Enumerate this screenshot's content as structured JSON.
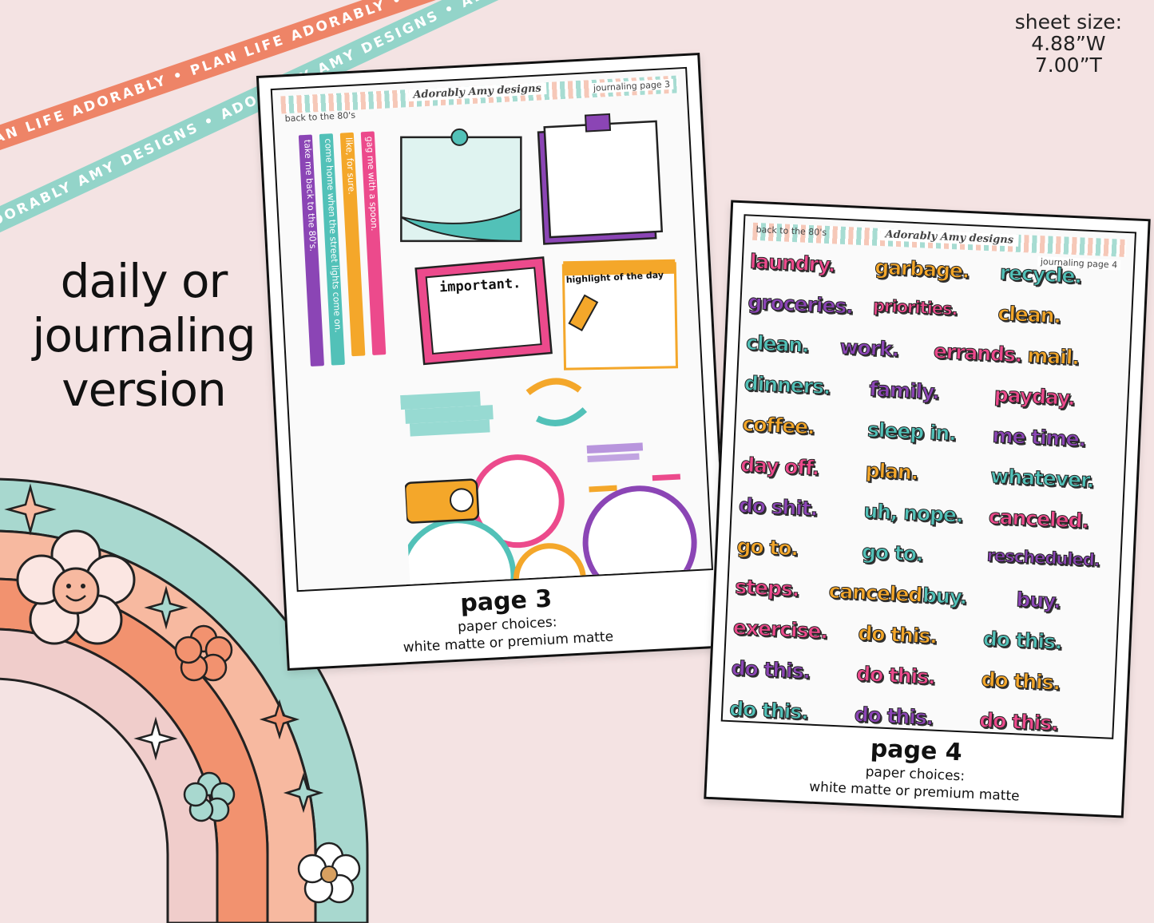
{
  "ribbons": {
    "orange_text": "PLAN LIFE ADORABLY • PLAN LIFE ADORABLY • PLAN LIFE ADORABLY • PLAN LIFE ADORABLY •",
    "teal_text": "ADORABLY AMY DESIGNS • ADORABLY AMY DESIGNS • ADORABLY AMY DESIGNS • ADORABLY AMY DESIGNS •"
  },
  "sheet_size": {
    "label": "sheet size:",
    "width": "4.88”W",
    "height": "7.00”T"
  },
  "headline": {
    "line1": "daily or",
    "line2": "journaling",
    "line3": "version"
  },
  "sheet1": {
    "header_left": "back to the 80's",
    "brand": "Adorably Amy designs",
    "header_right": "journaling page 3",
    "strips": [
      {
        "text": "take me back to the 80's.",
        "color": "#8b45b5"
      },
      {
        "text": "come home when the street lights come on.",
        "color": "#52c1b8"
      },
      {
        "text": "like, for sure.",
        "color": "#f4a72a"
      },
      {
        "text": "gag me with a spoon.",
        "color": "#ec4a8c"
      }
    ],
    "important_label": "important.",
    "highlight_label": "highlight of the day",
    "page_label": "page 3",
    "paper_label": "paper choices:",
    "paper_value": "white matte or premium matte"
  },
  "sheet2": {
    "header_left": "back to the 80's",
    "brand": "Adorably Amy designs",
    "header_right": "journaling page 4",
    "rows": [
      [
        {
          "w": "laundry.",
          "c": "pink"
        },
        {
          "w": "garbage.",
          "c": "orange"
        },
        {
          "w": "recycle.",
          "c": "teal"
        }
      ],
      [
        {
          "w": "groceries.",
          "c": "purple"
        },
        {
          "w": "priorities.",
          "c": "pink"
        },
        {
          "w": "clean.",
          "c": "orange"
        }
      ],
      [
        {
          "w": "clean.",
          "c": "teal"
        },
        {
          "w": "work.",
          "c": "purple"
        },
        {
          "w": "errands.",
          "c": "pink"
        },
        {
          "w": "mail.",
          "c": "orange"
        }
      ],
      [
        {
          "w": "dinners.",
          "c": "teal"
        },
        {
          "w": "family.",
          "c": "purple"
        },
        {
          "w": "payday.",
          "c": "pink"
        }
      ],
      [
        {
          "w": "coffee.",
          "c": "orange"
        },
        {
          "w": "sleep in.",
          "c": "teal"
        },
        {
          "w": "me time.",
          "c": "purple"
        }
      ],
      [
        {
          "w": "day off.",
          "c": "pink"
        },
        {
          "w": "plan.",
          "c": "orange"
        },
        {
          "w": "whatever.",
          "c": "teal"
        }
      ],
      [
        {
          "w": "do shit.",
          "c": "purple"
        },
        {
          "w": "uh, nope.",
          "c": "teal"
        },
        {
          "w": "canceled.",
          "c": "pink"
        }
      ],
      [
        {
          "w": "go to.",
          "c": "orange"
        },
        {
          "w": "go to.",
          "c": "teal"
        },
        {
          "w": "rescheduled.",
          "c": "purple"
        }
      ],
      [
        {
          "w": "steps.",
          "c": "pink"
        },
        {
          "w": "canceled.",
          "c": "orange"
        },
        {
          "w": "buy.",
          "c": "teal"
        },
        {
          "w": "buy.",
          "c": "purple"
        }
      ],
      [
        {
          "w": "exercise.",
          "c": "pink"
        },
        {
          "w": "do this.",
          "c": "orange"
        },
        {
          "w": "do this.",
          "c": "teal"
        }
      ],
      [
        {
          "w": "do this.",
          "c": "purple"
        },
        {
          "w": "do this.",
          "c": "pink"
        },
        {
          "w": "do this.",
          "c": "orange"
        }
      ],
      [
        {
          "w": "do this.",
          "c": "teal"
        },
        {
          "w": "do this.",
          "c": "purple"
        },
        {
          "w": "do this.",
          "c": "pink"
        }
      ]
    ],
    "page_label": "page 4",
    "paper_label": "paper choices:",
    "paper_value": "white matte or premium matte"
  },
  "colors": {
    "pink": "#ec4a8c",
    "orange": "#f4a72a",
    "teal": "#52c1b8",
    "purple": "#8b45b5",
    "background": "#f4e3e3"
  }
}
